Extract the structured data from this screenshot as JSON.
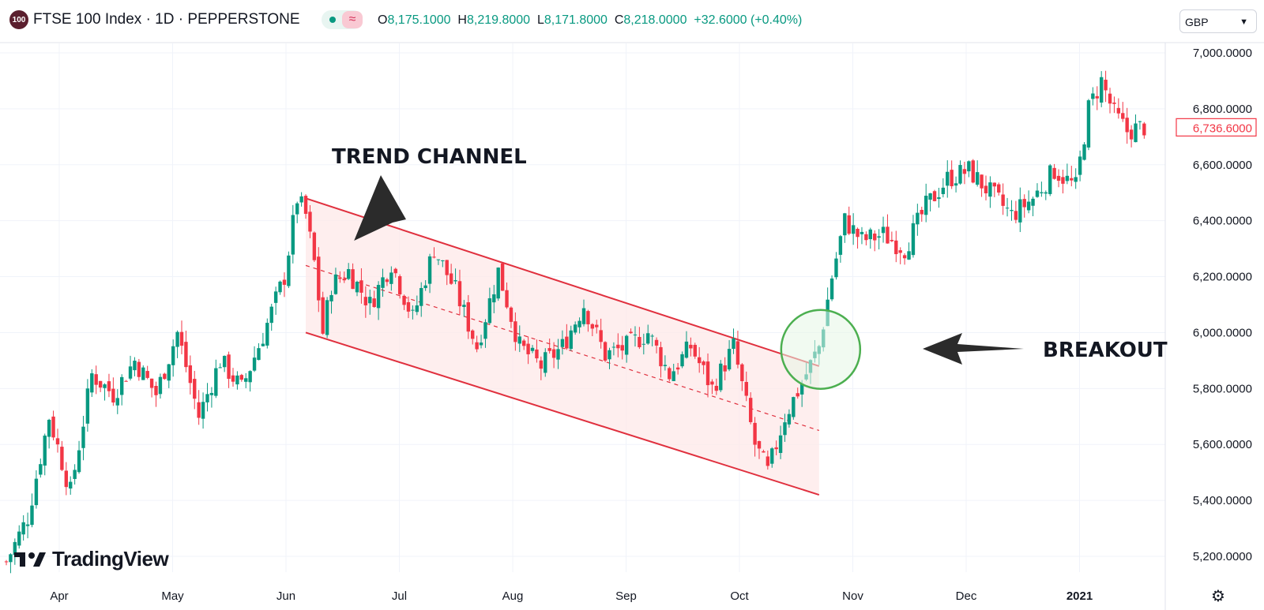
{
  "header": {
    "symbol_badge": "100",
    "title": "FTSE 100 Index · 1D · PEPPERSTONE",
    "ohlc": [
      {
        "key": "O",
        "value": "8,175.1000"
      },
      {
        "key": "H",
        "value": "8,219.8000"
      },
      {
        "key": "L",
        "value": "8,171.8000"
      },
      {
        "key": "C",
        "value": "8,218.0000"
      }
    ],
    "change": "+32.6000 (+0.40%)",
    "currency": "GBP"
  },
  "brand": {
    "name": "TradingView"
  },
  "colors": {
    "up": "#089981",
    "down": "#f23645",
    "channel": "#e0303e",
    "breakout_circle": "#4caf50",
    "arrow": "#2b2b2b"
  },
  "chart_data": {
    "type": "candlestick",
    "title": "FTSE 100 Index · 1D · PEPPERSTONE",
    "ylim": [
      5150,
      7100
    ],
    "x_ticks": [
      "Apr",
      "May",
      "Jun",
      "Jul",
      "Aug",
      "Sep",
      "Oct",
      "Nov",
      "Dec",
      "2021"
    ],
    "y_ticks": [
      "5,200.0000",
      "5,400.0000",
      "5,600.0000",
      "5,800.0000",
      "6,000.0000",
      "6,200.0000",
      "6,400.0000",
      "6,600.0000",
      "6,800.0000",
      "7,000.0000"
    ],
    "last_price": "6,736.6000",
    "close_path": [
      [
        0,
        5180
      ],
      [
        5,
        5340
      ],
      [
        10,
        5700
      ],
      [
        15,
        5430
      ],
      [
        20,
        5850
      ],
      [
        25,
        5780
      ],
      [
        30,
        5900
      ],
      [
        35,
        5780
      ],
      [
        40,
        6000
      ],
      [
        45,
        5700
      ],
      [
        50,
        5900
      ],
      [
        55,
        5800
      ],
      [
        60,
        5990
      ],
      [
        65,
        6200
      ],
      [
        68,
        6480
      ],
      [
        70,
        6420
      ],
      [
        72,
        6250
      ],
      [
        74,
        6000
      ],
      [
        76,
        6170
      ],
      [
        80,
        6220
      ],
      [
        85,
        6100
      ],
      [
        90,
        6250
      ],
      [
        95,
        6050
      ],
      [
        100,
        6300
      ],
      [
        105,
        6150
      ],
      [
        110,
        5950
      ],
      [
        115,
        6220
      ],
      [
        120,
        5950
      ],
      [
        125,
        5880
      ],
      [
        130,
        5950
      ],
      [
        135,
        6100
      ],
      [
        140,
        5920
      ],
      [
        145,
        5950
      ],
      [
        150,
        6000
      ],
      [
        155,
        5850
      ],
      [
        160,
        5950
      ],
      [
        165,
        5800
      ],
      [
        170,
        5950
      ],
      [
        175,
        5600
      ],
      [
        178,
        5500
      ],
      [
        182,
        5700
      ],
      [
        186,
        5820
      ],
      [
        190,
        5950
      ],
      [
        193,
        6200
      ],
      [
        196,
        6400
      ],
      [
        200,
        6330
      ],
      [
        205,
        6350
      ],
      [
        210,
        6300
      ],
      [
        215,
        6450
      ],
      [
        220,
        6550
      ],
      [
        225,
        6580
      ],
      [
        230,
        6500
      ],
      [
        235,
        6420
      ],
      [
        240,
        6480
      ],
      [
        245,
        6580
      ],
      [
        250,
        6520
      ],
      [
        253,
        6800
      ],
      [
        256,
        6900
      ],
      [
        259,
        6780
      ],
      [
        262,
        6720
      ],
      [
        266,
        6736
      ]
    ],
    "trend_channel": {
      "upper": [
        [
          70,
          6480
        ],
        [
          190,
          5880
        ]
      ],
      "lower": [
        [
          70,
          6000
        ],
        [
          190,
          5420
        ]
      ],
      "mid": [
        [
          70,
          6240
        ],
        [
          190,
          5650
        ]
      ]
    },
    "annotations": [
      {
        "text": "TREND CHANNEL",
        "points_to": [
          80,
          6370
        ]
      },
      {
        "text": "BREAKOUT",
        "points_to": [
          190,
          5940
        ]
      }
    ]
  }
}
